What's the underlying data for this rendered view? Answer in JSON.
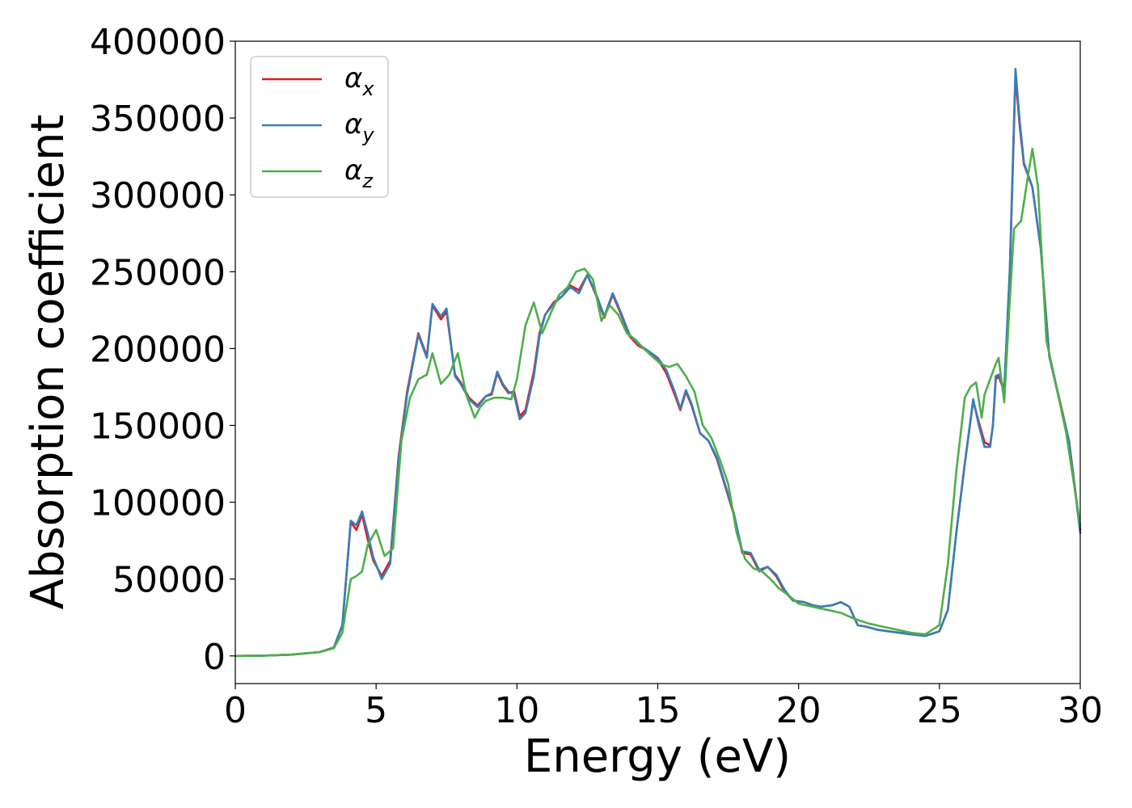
{
  "chart_data": {
    "type": "line",
    "title": "",
    "xlabel": "Energy (eV)",
    "ylabel": "Absorption coefficient",
    "xlim": [
      0,
      30
    ],
    "ylim": [
      -18000,
      400000
    ],
    "x_ticks": [
      0,
      5,
      10,
      15,
      20,
      25,
      30
    ],
    "y_ticks": [
      0,
      50000,
      100000,
      150000,
      200000,
      250000,
      300000,
      350000,
      400000
    ],
    "grid": false,
    "legend_position": "top-left",
    "series": [
      {
        "name": "α",
        "subscript": "x",
        "color": "#e41a1c",
        "x": [
          0,
          1,
          2,
          3,
          3.5,
          3.8,
          4.1,
          4.3,
          4.5,
          4.7,
          4.9,
          5.2,
          5.5,
          5.8,
          6.1,
          6.5,
          6.8,
          7.0,
          7.3,
          7.5,
          7.8,
          8.0,
          8.3,
          8.6,
          8.9,
          9.1,
          9.3,
          9.5,
          9.7,
          9.9,
          10.1,
          10.3,
          10.6,
          10.8,
          11.0,
          11.3,
          11.6,
          11.9,
          12.2,
          12.5,
          12.8,
          13.1,
          13.4,
          13.7,
          14.0,
          14.3,
          14.7,
          15.0,
          15.3,
          15.6,
          15.8,
          16.0,
          16.2,
          16.5,
          16.8,
          17.1,
          17.4,
          17.7,
          18.0,
          18.3,
          18.6,
          18.9,
          19.2,
          19.5,
          19.8,
          20.2,
          20.5,
          20.8,
          21.2,
          21.5,
          21.8,
          22.1,
          22.4,
          22.8,
          23.2,
          23.6,
          24.0,
          24.5,
          25.0,
          25.3,
          25.6,
          25.9,
          26.2,
          26.4,
          26.6,
          26.8,
          26.9,
          27.0,
          27.1,
          27.3,
          27.5,
          27.7,
          27.85,
          28.0,
          28.3,
          28.6,
          28.9,
          29.2,
          29.6,
          30.0
        ],
        "values": [
          0,
          200,
          800,
          2500,
          5500,
          20000,
          87000,
          82000,
          92000,
          76000,
          62000,
          52000,
          62000,
          130000,
          172000,
          210000,
          195000,
          228000,
          219000,
          224000,
          183000,
          178000,
          168000,
          163000,
          169000,
          170000,
          184000,
          176000,
          171000,
          172000,
          156000,
          160000,
          185000,
          210000,
          222000,
          230000,
          234000,
          241000,
          238000,
          248000,
          235000,
          220000,
          235000,
          222000,
          208000,
          202000,
          198000,
          193000,
          184000,
          170000,
          160000,
          172000,
          163000,
          145000,
          140000,
          128000,
          110000,
          92000,
          67000,
          66000,
          55000,
          58000,
          52000,
          42000,
          36000,
          35000,
          33000,
          32000,
          33000,
          35000,
          32000,
          20000,
          19000,
          17000,
          16000,
          15000,
          14000,
          13000,
          16000,
          30000,
          80000,
          125000,
          166000,
          152000,
          139000,
          137000,
          150000,
          180000,
          182000,
          172000,
          250000,
          378000,
          345000,
          320000,
          305000,
          265000,
          195000,
          172000,
          140000,
          82000
        ]
      },
      {
        "name": "α",
        "subscript": "y",
        "color": "#377eb8",
        "x": [
          0,
          1,
          2,
          3,
          3.5,
          3.8,
          4.1,
          4.3,
          4.5,
          4.7,
          4.9,
          5.2,
          5.5,
          5.8,
          6.1,
          6.5,
          6.8,
          7.0,
          7.3,
          7.5,
          7.8,
          8.0,
          8.3,
          8.6,
          8.9,
          9.1,
          9.3,
          9.5,
          9.7,
          9.9,
          10.1,
          10.3,
          10.6,
          10.8,
          11.0,
          11.3,
          11.6,
          11.9,
          12.2,
          12.5,
          12.8,
          13.1,
          13.4,
          13.7,
          14.0,
          14.3,
          14.7,
          15.0,
          15.3,
          15.6,
          15.8,
          16.0,
          16.2,
          16.5,
          16.8,
          17.1,
          17.4,
          17.7,
          18.0,
          18.3,
          18.6,
          18.9,
          19.2,
          19.5,
          19.8,
          20.2,
          20.5,
          20.8,
          21.2,
          21.5,
          21.8,
          22.1,
          22.4,
          22.8,
          23.2,
          23.6,
          24.0,
          24.5,
          25.0,
          25.3,
          25.6,
          25.9,
          26.2,
          26.4,
          26.6,
          26.8,
          26.9,
          27.0,
          27.1,
          27.3,
          27.5,
          27.7,
          27.85,
          28.0,
          28.3,
          28.6,
          28.9,
          29.2,
          29.6,
          30.0
        ],
        "values": [
          0,
          200,
          800,
          2500,
          5500,
          20000,
          88000,
          85000,
          94000,
          80000,
          64000,
          50000,
          60000,
          128000,
          170000,
          209000,
          194000,
          229000,
          221000,
          226000,
          182000,
          177000,
          167000,
          162000,
          169000,
          171000,
          185000,
          177000,
          172000,
          170000,
          154000,
          158000,
          182000,
          208000,
          222000,
          229000,
          234000,
          240000,
          236000,
          248000,
          236000,
          221000,
          236000,
          223000,
          209000,
          203000,
          198000,
          194000,
          186000,
          172000,
          161000,
          173000,
          164000,
          145000,
          140000,
          129000,
          111000,
          93000,
          68000,
          67000,
          56000,
          58000,
          53000,
          43000,
          36000,
          35000,
          33000,
          32000,
          33000,
          35000,
          32000,
          20000,
          19000,
          17000,
          16000,
          15000,
          14000,
          13000,
          16000,
          30000,
          80000,
          125000,
          167000,
          150000,
          136000,
          136000,
          150000,
          182000,
          183000,
          174000,
          252000,
          382000,
          348000,
          321000,
          305000,
          265000,
          195000,
          171000,
          140000,
          80000
        ]
      },
      {
        "name": "α",
        "subscript": "z",
        "color": "#4daf4a",
        "x": [
          0,
          1,
          2,
          3,
          3.5,
          3.8,
          4.1,
          4.3,
          4.5,
          4.7,
          5.0,
          5.3,
          5.6,
          5.9,
          6.2,
          6.5,
          6.8,
          7.0,
          7.3,
          7.6,
          7.9,
          8.2,
          8.5,
          8.7,
          8.9,
          9.2,
          9.5,
          9.8,
          10.0,
          10.3,
          10.6,
          10.9,
          11.2,
          11.5,
          11.8,
          12.1,
          12.4,
          12.7,
          13.0,
          13.3,
          13.6,
          13.9,
          14.2,
          14.5,
          14.8,
          15.1,
          15.4,
          15.7,
          16.0,
          16.3,
          16.6,
          16.9,
          17.2,
          17.5,
          17.8,
          18.1,
          18.4,
          18.7,
          19.0,
          19.3,
          19.6,
          20.0,
          20.5,
          21.0,
          21.5,
          22.0,
          22.5,
          23.0,
          23.5,
          24.0,
          24.5,
          25.0,
          25.3,
          25.6,
          25.9,
          26.1,
          26.3,
          26.5,
          26.6,
          26.8,
          27.0,
          27.1,
          27.3,
          27.5,
          27.65,
          27.9,
          28.1,
          28.3,
          28.5,
          28.8,
          29.1,
          29.5,
          30.0
        ],
        "values": [
          0,
          200,
          800,
          2500,
          5000,
          15000,
          50000,
          52000,
          55000,
          72000,
          82000,
          65000,
          70000,
          140000,
          168000,
          180000,
          183000,
          197000,
          177000,
          183000,
          197000,
          170000,
          155000,
          162000,
          166000,
          168000,
          168000,
          167000,
          180000,
          215000,
          230000,
          210000,
          223000,
          235000,
          240000,
          250000,
          252000,
          245000,
          218000,
          228000,
          222000,
          210000,
          206000,
          200000,
          195000,
          190000,
          188000,
          190000,
          182000,
          172000,
          150000,
          142000,
          128000,
          112000,
          80000,
          63000,
          57000,
          55000,
          50000,
          44000,
          40000,
          34000,
          32000,
          30000,
          28000,
          24000,
          21000,
          19000,
          17000,
          15000,
          14000,
          20000,
          60000,
          120000,
          168000,
          175000,
          178000,
          155000,
          170000,
          180000,
          190000,
          194000,
          165000,
          232000,
          278000,
          283000,
          307000,
          330000,
          305000,
          205000,
          180000,
          145000,
          85000
        ]
      }
    ]
  }
}
